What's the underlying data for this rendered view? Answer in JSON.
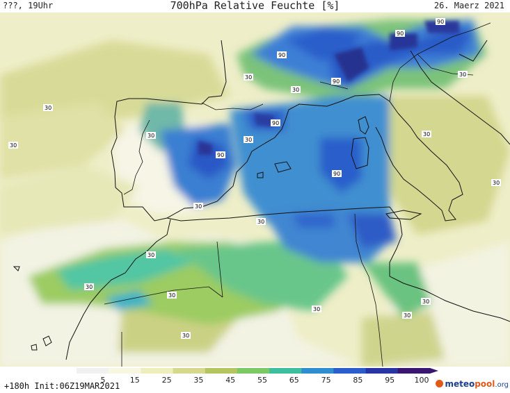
{
  "header": {
    "left": "???, 19Uhr",
    "title": "700hPa Relative Feuchte [%]",
    "right": "26. Maerz 2021"
  },
  "footer": {
    "run": "+180h Init:06Z19MAR2021",
    "logo_a": "meteo",
    "logo_b": "pool",
    "logo_c": ".org"
  },
  "legend": {
    "ticks": [
      "5",
      "15",
      "25",
      "35",
      "45",
      "55",
      "65",
      "75",
      "85",
      "95",
      "100"
    ],
    "colors": [
      "#f1f1f1",
      "#f8f7e2",
      "#eeeebd",
      "#d6d98b",
      "#b4c55f",
      "#7cc862",
      "#3dbf9e",
      "#2f8ecf",
      "#2b5ccb",
      "#2835a3",
      "#3a1670"
    ]
  },
  "contour_labels": [
    {
      "text": "90"
    },
    {
      "text": "90"
    },
    {
      "text": "90"
    },
    {
      "text": "90"
    },
    {
      "text": "90"
    },
    {
      "text": "90"
    },
    {
      "text": "90"
    },
    {
      "text": "30"
    },
    {
      "text": "30"
    },
    {
      "text": "30"
    },
    {
      "text": "30"
    },
    {
      "text": "30"
    },
    {
      "text": "30"
    },
    {
      "text": "30"
    },
    {
      "text": "30"
    },
    {
      "text": "30"
    },
    {
      "text": "30"
    },
    {
      "text": "30"
    },
    {
      "text": "30"
    },
    {
      "text": "30"
    },
    {
      "text": "30"
    },
    {
      "text": "30"
    },
    {
      "text": "30"
    },
    {
      "text": "30"
    },
    {
      "text": "30"
    }
  ]
}
